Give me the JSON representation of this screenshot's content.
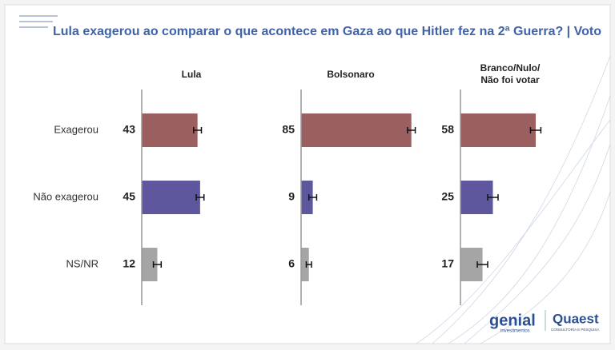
{
  "chart_data": {
    "type": "bar",
    "title": "Lula exagerou ao comparar o que acontece em Gaza ao que Hitler fez na 2ª Guerra? | Voto",
    "categories": [
      "Exagerou",
      "Não exagerou",
      "NS/NR"
    ],
    "colors": [
      "#9a5f5e",
      "#5e579e",
      "#a5a5a5"
    ],
    "series": [
      {
        "name": "Lula",
        "values": [
          43,
          45,
          12
        ],
        "errors": [
          3,
          3,
          3
        ]
      },
      {
        "name": "Bolsonaro",
        "values": [
          85,
          9,
          6
        ],
        "errors": [
          3,
          3,
          2
        ]
      },
      {
        "name": "Branco/Nulo/\nNão foi votar",
        "values": [
          58,
          25,
          17
        ],
        "errors": [
          4,
          4,
          4
        ]
      }
    ]
  },
  "logos": {
    "genial": "genial",
    "genial_sub": "investimentos",
    "quaest": "Quaest",
    "quaest_sub": "CONSULTORIA E PESQUISA"
  }
}
